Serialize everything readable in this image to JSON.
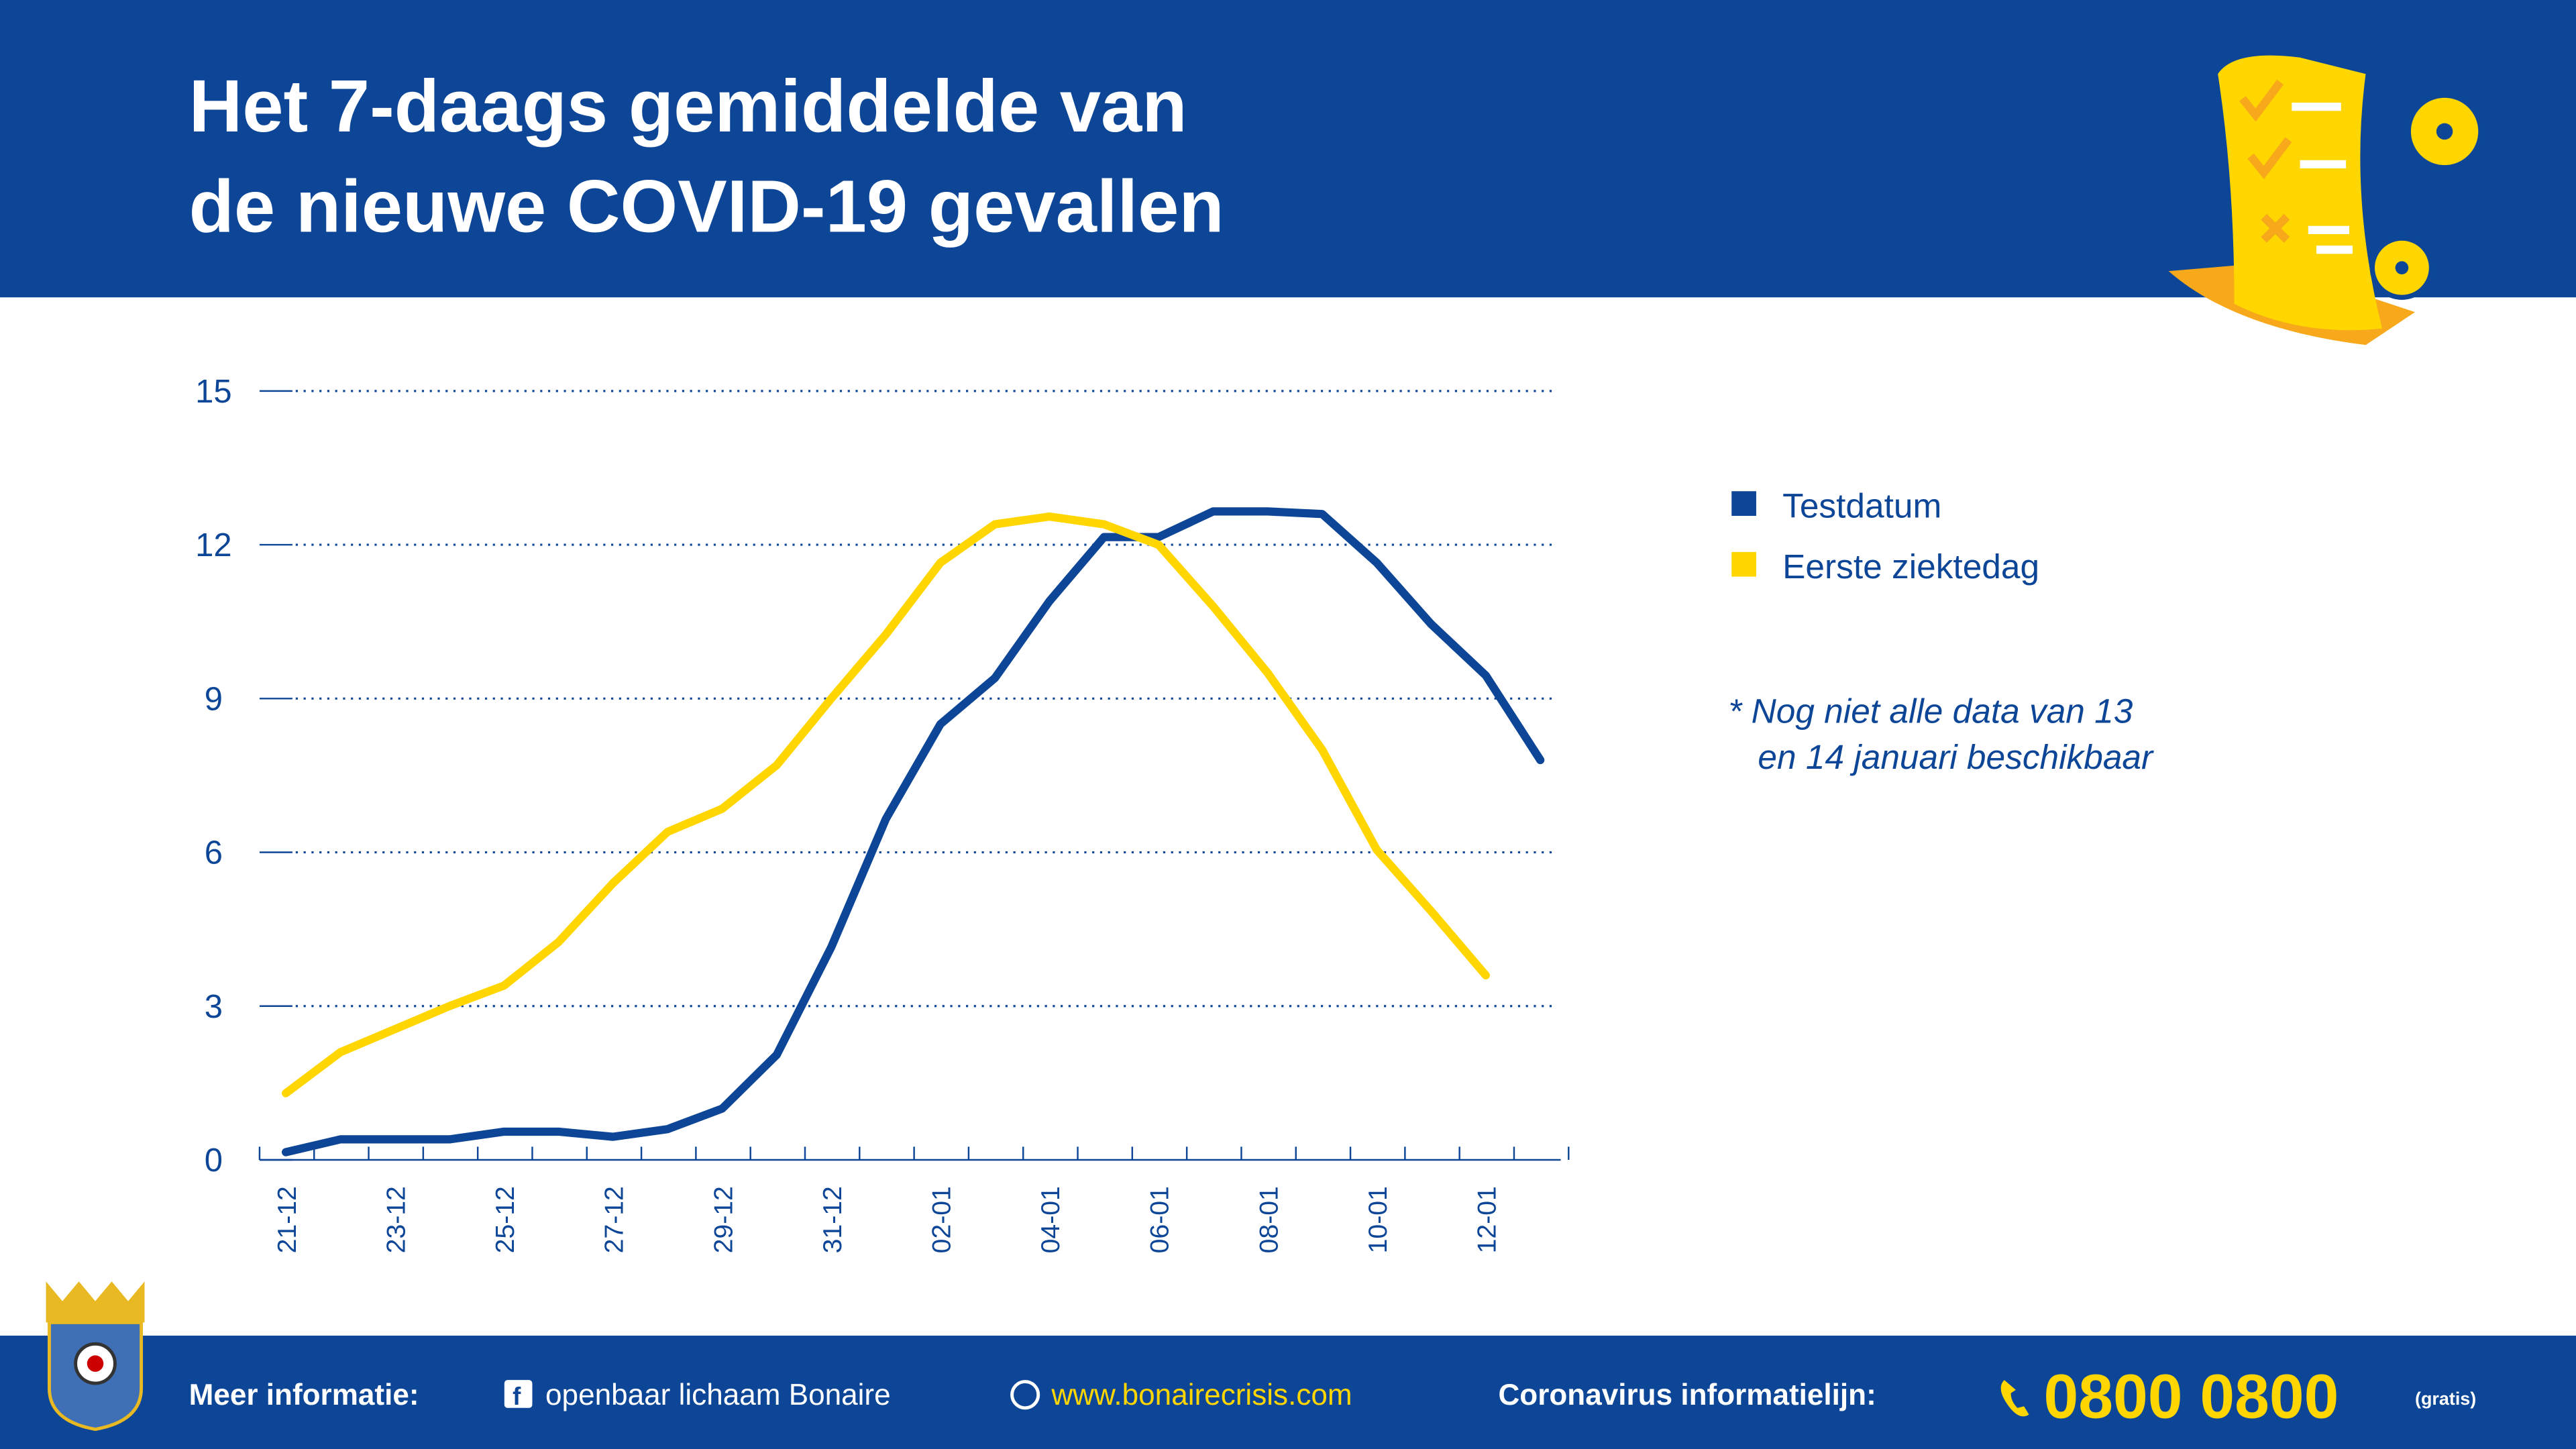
{
  "header": {
    "title": [
      "Het 7-daags gemiddelde van",
      "de nieuwe COVID-19 gevallen"
    ]
  },
  "chart_data": {
    "type": "line",
    "categories": [
      "21-12",
      null,
      "23-12",
      null,
      "25-12",
      null,
      "27-12",
      null,
      "29-12",
      null,
      "31-12",
      null,
      "02-01",
      null,
      "04-01",
      null,
      "06-01",
      null,
      "08-01",
      null,
      "10-01",
      null,
      "12-01",
      null
    ],
    "series": [
      {
        "name": "Testdatum",
        "color": "#0d4697",
        "values": [
          0.15,
          0.4,
          0.4,
          0.4,
          0.55,
          0.55,
          0.45,
          0.6,
          1.0,
          2.05,
          4.15,
          6.65,
          8.5,
          9.4,
          10.9,
          12.15,
          12.15,
          12.65,
          12.65,
          12.6,
          11.65,
          10.45,
          9.45,
          7.8
        ]
      },
      {
        "name": "Eerste ziektedag",
        "color": "#ffd600",
        "values": [
          1.3,
          2.1,
          2.55,
          3.0,
          3.4,
          4.25,
          5.4,
          6.4,
          6.85,
          7.7,
          9.0,
          10.25,
          11.65,
          12.4,
          12.55,
          12.4,
          12.0,
          10.8,
          9.5,
          8.0,
          6.05,
          4.85,
          3.6,
          null
        ]
      }
    ],
    "ylim": [
      0,
      15
    ],
    "yticks": [
      0,
      3,
      6,
      9,
      12,
      15
    ],
    "grid": true,
    "note": [
      "* Nog niet alle data van 13",
      "en 14 januari beschikbaar"
    ]
  },
  "footer": {
    "more_label": "Meer informatie:",
    "facebook": "openbaar lichaam Bonaire",
    "website": "www.bonairecrisis.com",
    "line_label": "Coronavirus informatielijn:",
    "phone": "0800 0800",
    "free": "(gratis)"
  }
}
